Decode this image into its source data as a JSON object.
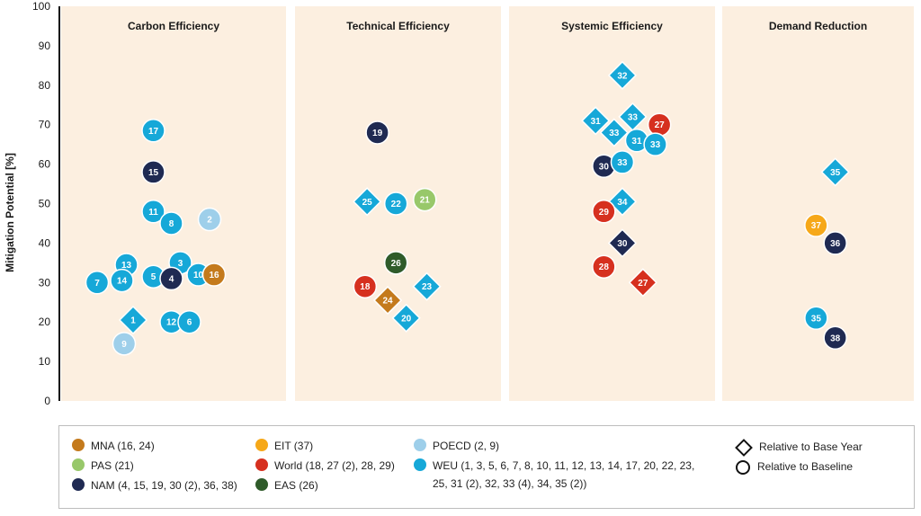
{
  "colors": {
    "MNA": "#c47a1c",
    "PAS": "#98c86a",
    "NAM": "#1f2a52",
    "EIT": "#f6a819",
    "World": "#d6301f",
    "EAS": "#2f5b2a",
    "POECD": "#9ecfea",
    "WEU": "#16a8d8",
    "panel_bg": "#fcefe0"
  },
  "legend": {
    "regions": [
      {
        "key": "MNA",
        "label": "MNA (16, 24)"
      },
      {
        "key": "PAS",
        "label": "PAS (21)"
      },
      {
        "key": "NAM",
        "label": "NAM (4, 15, 19, 30 (2), 36, 38)"
      },
      {
        "key": "EIT",
        "label": "EIT (37)"
      },
      {
        "key": "World",
        "label": "World (18, 27 (2), 28, 29)"
      },
      {
        "key": "EAS",
        "label": "EAS  (26)"
      },
      {
        "key": "POECD",
        "label": "POECD (2, 9)"
      },
      {
        "key": "WEU",
        "label": "WEU (1, 3, 5, 6, 7, 8, 10, 11, 12, 13, 14, 17, 20, 22, 23,"
      },
      {
        "key": "WEU_cont",
        "label": "25, 31 (2), 32, 33 (4), 34, 35 (2))"
      }
    ],
    "shapes": {
      "diamond": "Relative to Base Year",
      "circle": "Relative to Baseline"
    }
  },
  "chart_data": {
    "type": "scatter",
    "ylabel": "Mitigation Potential [%]",
    "ylim": [
      0,
      100
    ],
    "yticks": [
      0,
      10,
      20,
      30,
      40,
      50,
      60,
      70,
      80,
      90,
      100
    ],
    "grid": false,
    "panels": [
      {
        "title": "Carbon Efficiency",
        "points": [
          {
            "id": "17",
            "region": "WEU",
            "shape": "circle",
            "y": 68.5,
            "pos": 0.41
          },
          {
            "id": "15",
            "region": "NAM",
            "shape": "circle",
            "y": 58,
            "pos": 0.41
          },
          {
            "id": "11",
            "region": "WEU",
            "shape": "circle",
            "y": 48,
            "pos": 0.41
          },
          {
            "id": "8",
            "region": "WEU",
            "shape": "circle",
            "y": 45,
            "pos": 0.49
          },
          {
            "id": "2",
            "region": "POECD",
            "shape": "circle",
            "y": 46,
            "pos": 0.66
          },
          {
            "id": "13",
            "region": "WEU",
            "shape": "circle",
            "y": 34.5,
            "pos": 0.29
          },
          {
            "id": "3",
            "region": "WEU",
            "shape": "circle",
            "y": 35,
            "pos": 0.53
          },
          {
            "id": "7",
            "region": "WEU",
            "shape": "circle",
            "y": 30,
            "pos": 0.16
          },
          {
            "id": "14",
            "region": "WEU",
            "shape": "circle",
            "y": 30.5,
            "pos": 0.27
          },
          {
            "id": "5",
            "region": "WEU",
            "shape": "circle",
            "y": 31.5,
            "pos": 0.41
          },
          {
            "id": "4",
            "region": "NAM",
            "shape": "circle",
            "y": 31,
            "pos": 0.49
          },
          {
            "id": "10",
            "region": "WEU",
            "shape": "circle",
            "y": 32,
            "pos": 0.61
          },
          {
            "id": "16",
            "region": "MNA",
            "shape": "circle",
            "y": 32,
            "pos": 0.68
          },
          {
            "id": "1",
            "region": "WEU",
            "shape": "diamond",
            "y": 20.5,
            "pos": 0.32
          },
          {
            "id": "12",
            "region": "WEU",
            "shape": "circle",
            "y": 20,
            "pos": 0.49
          },
          {
            "id": "6",
            "region": "WEU",
            "shape": "circle",
            "y": 20,
            "pos": 0.57
          },
          {
            "id": "9",
            "region": "POECD",
            "shape": "circle",
            "y": 14.5,
            "pos": 0.28
          }
        ]
      },
      {
        "title": "Technical Efficiency",
        "points": [
          {
            "id": "19",
            "region": "NAM",
            "shape": "circle",
            "y": 68,
            "pos": 0.4
          },
          {
            "id": "25",
            "region": "WEU",
            "shape": "diamond",
            "y": 50.5,
            "pos": 0.35
          },
          {
            "id": "22",
            "region": "WEU",
            "shape": "circle",
            "y": 50,
            "pos": 0.49
          },
          {
            "id": "21",
            "region": "PAS",
            "shape": "circle",
            "y": 51,
            "pos": 0.63
          },
          {
            "id": "26",
            "region": "EAS",
            "shape": "circle",
            "y": 35,
            "pos": 0.49
          },
          {
            "id": "18",
            "region": "World",
            "shape": "circle",
            "y": 29,
            "pos": 0.34
          },
          {
            "id": "23",
            "region": "WEU",
            "shape": "diamond",
            "y": 29,
            "pos": 0.64
          },
          {
            "id": "24",
            "region": "MNA",
            "shape": "diamond",
            "y": 25.5,
            "pos": 0.45
          },
          {
            "id": "20",
            "region": "WEU",
            "shape": "diamond",
            "y": 21,
            "pos": 0.54
          }
        ]
      },
      {
        "title": "Systemic Efficiency",
        "points": [
          {
            "id": "32",
            "region": "WEU",
            "shape": "diamond",
            "y": 82.5,
            "pos": 0.55
          },
          {
            "id": "31",
            "region": "WEU",
            "shape": "diamond",
            "y": 71,
            "pos": 0.42
          },
          {
            "id": "33",
            "region": "WEU",
            "shape": "diamond",
            "y": 72,
            "pos": 0.6
          },
          {
            "id": "27",
            "region": "World",
            "shape": "circle",
            "y": 70,
            "pos": 0.73
          },
          {
            "id": "33",
            "region": "WEU",
            "shape": "diamond",
            "y": 68,
            "pos": 0.51
          },
          {
            "id": "31",
            "region": "WEU",
            "shape": "circle",
            "y": 66,
            "pos": 0.62
          },
          {
            "id": "33",
            "region": "WEU",
            "shape": "circle",
            "y": 65,
            "pos": 0.71
          },
          {
            "id": "30",
            "region": "NAM",
            "shape": "circle",
            "y": 59.5,
            "pos": 0.46
          },
          {
            "id": "33",
            "region": "WEU",
            "shape": "circle",
            "y": 60.5,
            "pos": 0.55
          },
          {
            "id": "34",
            "region": "WEU",
            "shape": "diamond",
            "y": 50.5,
            "pos": 0.55
          },
          {
            "id": "29",
            "region": "World",
            "shape": "circle",
            "y": 48,
            "pos": 0.46
          },
          {
            "id": "30",
            "region": "NAM",
            "shape": "diamond",
            "y": 40,
            "pos": 0.55
          },
          {
            "id": "28",
            "region": "World",
            "shape": "circle",
            "y": 34,
            "pos": 0.46
          },
          {
            "id": "27",
            "region": "World",
            "shape": "diamond",
            "y": 30,
            "pos": 0.65
          }
        ]
      },
      {
        "title": "Demand Reduction",
        "points": [
          {
            "id": "35",
            "region": "WEU",
            "shape": "diamond",
            "y": 58,
            "pos": 0.59
          },
          {
            "id": "37",
            "region": "EIT",
            "shape": "circle",
            "y": 44.5,
            "pos": 0.49
          },
          {
            "id": "36",
            "region": "NAM",
            "shape": "circle",
            "y": 40,
            "pos": 0.59
          },
          {
            "id": "35",
            "region": "WEU",
            "shape": "circle",
            "y": 21,
            "pos": 0.49
          },
          {
            "id": "38",
            "region": "NAM",
            "shape": "circle",
            "y": 16,
            "pos": 0.59
          }
        ]
      }
    ]
  }
}
